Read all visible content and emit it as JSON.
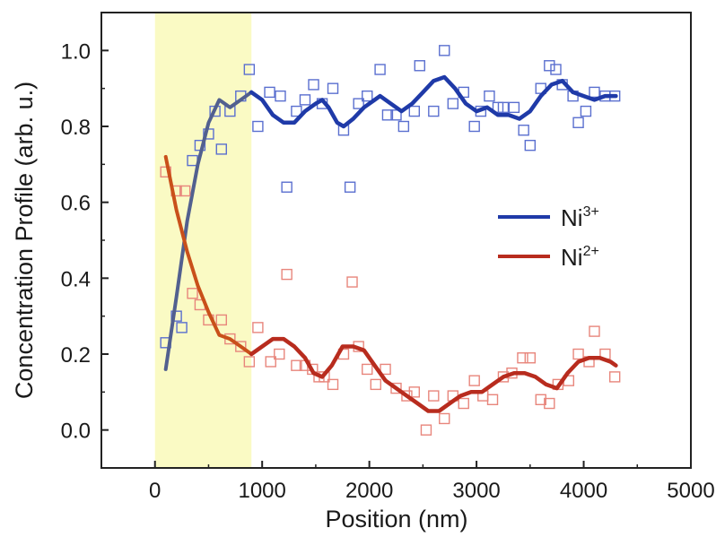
{
  "chart_data": {
    "type": "scatter",
    "xlabel": "Position (nm)",
    "ylabel": "Concentration Profile (arb. u.)",
    "xlim": [
      -500,
      5000
    ],
    "ylim": [
      -0.1,
      1.1
    ],
    "xticks": [
      0,
      1000,
      2000,
      3000,
      4000,
      5000
    ],
    "yticks": [
      0.0,
      0.2,
      0.4,
      0.6,
      0.8,
      1.0
    ],
    "xtick_labels": [
      "0",
      "1000",
      "2000",
      "3000",
      "4000",
      "5000"
    ],
    "ytick_labels": [
      "0.0",
      "0.2",
      "0.4",
      "0.6",
      "0.8",
      "1.0"
    ],
    "highlight_region": {
      "x_range": [
        0,
        900
      ],
      "color": "#fafac4"
    },
    "legend_position": "center-right",
    "grid": false,
    "series": [
      {
        "name": "Ni",
        "superscript": "3+",
        "color": "#1f3aa8",
        "marker_color": "#5a6fcf",
        "shaded_line_color": "#52608f",
        "points": [
          [
            100,
            0.23
          ],
          [
            200,
            0.3
          ],
          [
            250,
            0.27
          ],
          [
            350,
            0.71
          ],
          [
            420,
            0.75
          ],
          [
            500,
            0.78
          ],
          [
            560,
            0.84
          ],
          [
            620,
            0.74
          ],
          [
            700,
            0.84
          ],
          [
            800,
            0.88
          ],
          [
            880,
            0.95
          ],
          [
            960,
            0.8
          ],
          [
            1070,
            0.89
          ],
          [
            1170,
            0.88
          ],
          [
            1230,
            0.64
          ],
          [
            1320,
            0.84
          ],
          [
            1400,
            0.87
          ],
          [
            1480,
            0.91
          ],
          [
            1560,
            0.86
          ],
          [
            1660,
            0.9
          ],
          [
            1760,
            0.79
          ],
          [
            1820,
            0.64
          ],
          [
            1900,
            0.86
          ],
          [
            1980,
            0.88
          ],
          [
            2100,
            0.95
          ],
          [
            2170,
            0.83
          ],
          [
            2250,
            0.83
          ],
          [
            2320,
            0.8
          ],
          [
            2420,
            0.84
          ],
          [
            2470,
            0.96
          ],
          [
            2600,
            0.84
          ],
          [
            2700,
            1.0
          ],
          [
            2780,
            0.86
          ],
          [
            2880,
            0.89
          ],
          [
            2980,
            0.8
          ],
          [
            3040,
            0.84
          ],
          [
            3120,
            0.88
          ],
          [
            3200,
            0.85
          ],
          [
            3250,
            0.85
          ],
          [
            3350,
            0.85
          ],
          [
            3440,
            0.79
          ],
          [
            3500,
            0.75
          ],
          [
            3600,
            0.9
          ],
          [
            3680,
            0.96
          ],
          [
            3740,
            0.95
          ],
          [
            3800,
            0.91
          ],
          [
            3900,
            0.88
          ],
          [
            3950,
            0.81
          ],
          [
            4020,
            0.84
          ],
          [
            4100,
            0.89
          ],
          [
            4200,
            0.88
          ],
          [
            4290,
            0.88
          ]
        ],
        "fit": [
          [
            100,
            0.16
          ],
          [
            200,
            0.35
          ],
          [
            300,
            0.55
          ],
          [
            400,
            0.7
          ],
          [
            500,
            0.81
          ],
          [
            600,
            0.87
          ],
          [
            700,
            0.85
          ],
          [
            800,
            0.87
          ],
          [
            900,
            0.89
          ],
          [
            1000,
            0.87
          ],
          [
            1100,
            0.83
          ],
          [
            1200,
            0.81
          ],
          [
            1300,
            0.81
          ],
          [
            1400,
            0.84
          ],
          [
            1500,
            0.86
          ],
          [
            1560,
            0.87
          ],
          [
            1620,
            0.85
          ],
          [
            1700,
            0.81
          ],
          [
            1760,
            0.8
          ],
          [
            1850,
            0.82
          ],
          [
            1950,
            0.85
          ],
          [
            2050,
            0.87
          ],
          [
            2100,
            0.88
          ],
          [
            2200,
            0.86
          ],
          [
            2300,
            0.84
          ],
          [
            2400,
            0.86
          ],
          [
            2500,
            0.89
          ],
          [
            2600,
            0.92
          ],
          [
            2700,
            0.93
          ],
          [
            2800,
            0.9
          ],
          [
            2900,
            0.86
          ],
          [
            3000,
            0.84
          ],
          [
            3100,
            0.85
          ],
          [
            3200,
            0.83
          ],
          [
            3300,
            0.83
          ],
          [
            3400,
            0.82
          ],
          [
            3500,
            0.84
          ],
          [
            3600,
            0.88
          ],
          [
            3700,
            0.91
          ],
          [
            3800,
            0.92
          ],
          [
            3900,
            0.89
          ],
          [
            4000,
            0.88
          ],
          [
            4100,
            0.87
          ],
          [
            4200,
            0.88
          ],
          [
            4300,
            0.88
          ]
        ]
      },
      {
        "name": "Ni",
        "superscript": "2+",
        "color": "#b82c1e",
        "marker_color": "#e8867c",
        "shaded_line_color": "#c9501a",
        "points": [
          [
            100,
            0.68
          ],
          [
            200,
            0.63
          ],
          [
            280,
            0.63
          ],
          [
            350,
            0.36
          ],
          [
            420,
            0.33
          ],
          [
            500,
            0.29
          ],
          [
            620,
            0.29
          ],
          [
            700,
            0.24
          ],
          [
            800,
            0.22
          ],
          [
            880,
            0.18
          ],
          [
            960,
            0.27
          ],
          [
            1080,
            0.18
          ],
          [
            1160,
            0.2
          ],
          [
            1230,
            0.41
          ],
          [
            1320,
            0.17
          ],
          [
            1400,
            0.17
          ],
          [
            1470,
            0.16
          ],
          [
            1530,
            0.14
          ],
          [
            1580,
            0.14
          ],
          [
            1660,
            0.12
          ],
          [
            1760,
            0.2
          ],
          [
            1840,
            0.39
          ],
          [
            1900,
            0.22
          ],
          [
            1980,
            0.16
          ],
          [
            2060,
            0.12
          ],
          [
            2150,
            0.16
          ],
          [
            2250,
            0.11
          ],
          [
            2350,
            0.09
          ],
          [
            2420,
            0.1
          ],
          [
            2530,
            0.0
          ],
          [
            2600,
            0.09
          ],
          [
            2700,
            0.03
          ],
          [
            2780,
            0.09
          ],
          [
            2880,
            0.07
          ],
          [
            2980,
            0.13
          ],
          [
            3060,
            0.09
          ],
          [
            3150,
            0.08
          ],
          [
            3250,
            0.14
          ],
          [
            3330,
            0.15
          ],
          [
            3430,
            0.19
          ],
          [
            3500,
            0.19
          ],
          [
            3600,
            0.08
          ],
          [
            3680,
            0.07
          ],
          [
            3760,
            0.12
          ],
          [
            3860,
            0.13
          ],
          [
            3950,
            0.2
          ],
          [
            4050,
            0.18
          ],
          [
            4100,
            0.26
          ],
          [
            4200,
            0.2
          ],
          [
            4290,
            0.14
          ]
        ],
        "fit": [
          [
            100,
            0.72
          ],
          [
            200,
            0.58
          ],
          [
            300,
            0.47
          ],
          [
            400,
            0.38
          ],
          [
            500,
            0.31
          ],
          [
            600,
            0.25
          ],
          [
            700,
            0.24
          ],
          [
            800,
            0.22
          ],
          [
            900,
            0.2
          ],
          [
            1000,
            0.22
          ],
          [
            1100,
            0.24
          ],
          [
            1200,
            0.24
          ],
          [
            1300,
            0.22
          ],
          [
            1400,
            0.19
          ],
          [
            1480,
            0.15
          ],
          [
            1560,
            0.14
          ],
          [
            1650,
            0.17
          ],
          [
            1750,
            0.22
          ],
          [
            1850,
            0.22
          ],
          [
            1950,
            0.21
          ],
          [
            2050,
            0.17
          ],
          [
            2150,
            0.13
          ],
          [
            2250,
            0.11
          ],
          [
            2350,
            0.09
          ],
          [
            2450,
            0.07
          ],
          [
            2550,
            0.05
          ],
          [
            2650,
            0.05
          ],
          [
            2750,
            0.07
          ],
          [
            2850,
            0.09
          ],
          [
            2950,
            0.1
          ],
          [
            3050,
            0.1
          ],
          [
            3150,
            0.12
          ],
          [
            3250,
            0.14
          ],
          [
            3350,
            0.15
          ],
          [
            3450,
            0.15
          ],
          [
            3550,
            0.14
          ],
          [
            3650,
            0.12
          ],
          [
            3750,
            0.11
          ],
          [
            3850,
            0.15
          ],
          [
            3950,
            0.18
          ],
          [
            4050,
            0.19
          ],
          [
            4150,
            0.19
          ],
          [
            4250,
            0.18
          ],
          [
            4300,
            0.17
          ]
        ]
      }
    ]
  }
}
